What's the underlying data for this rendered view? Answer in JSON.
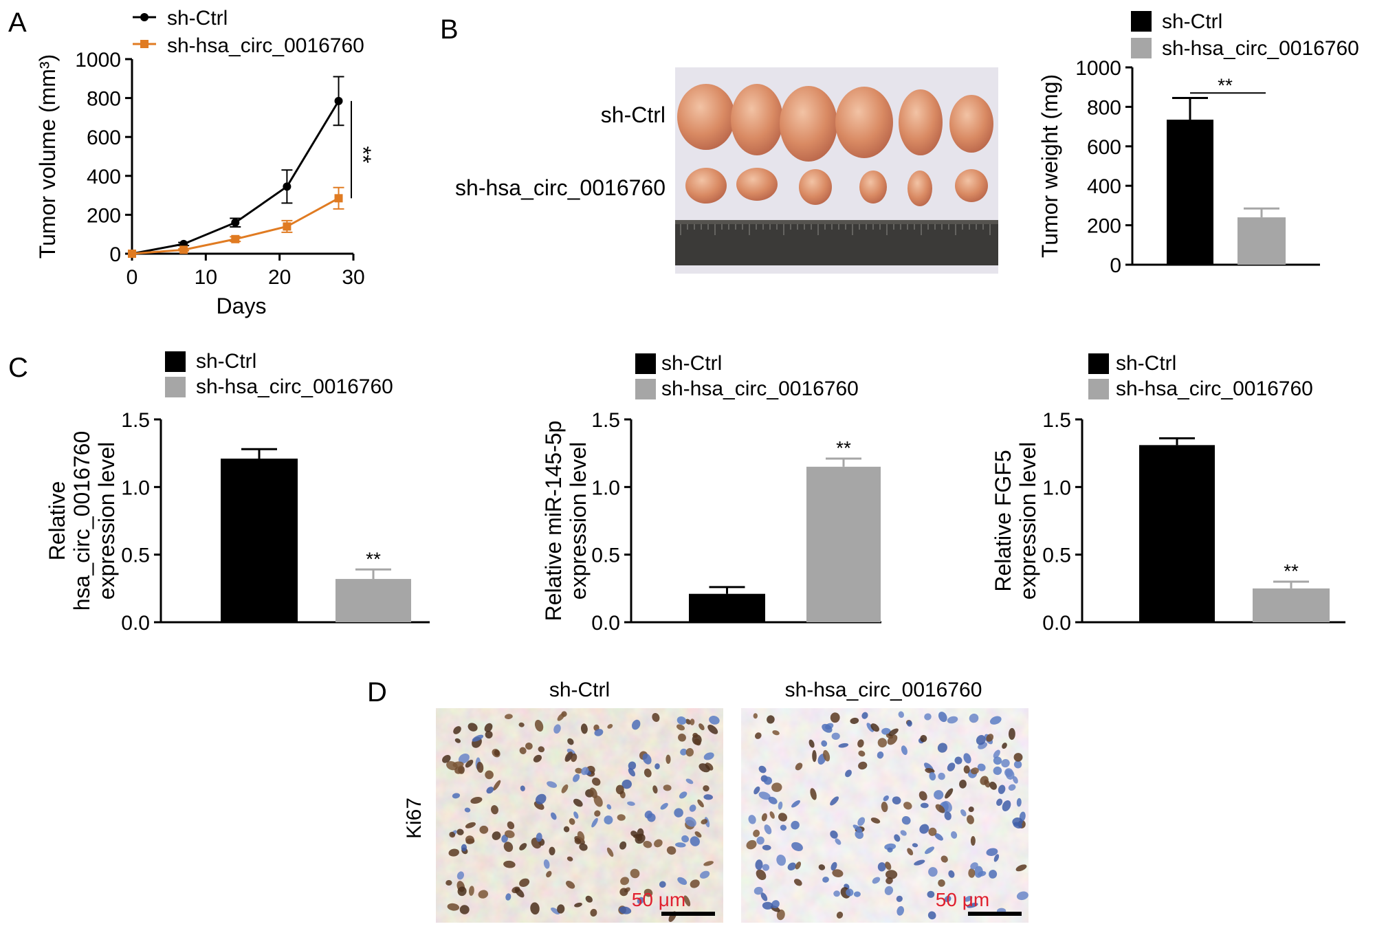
{
  "figure": {
    "panel_labels": [
      "A",
      "B",
      "C",
      "D"
    ],
    "colors": {
      "ctrl": "#000000",
      "sh": "#a6a6a6",
      "sh_line": "#e07b22",
      "scale_text": "#e0202e"
    }
  },
  "panel_a": {
    "legend": [
      "sh-Ctrl",
      "sh-hsa_circ_0016760"
    ],
    "significance": "**"
  },
  "panel_b": {
    "photo_row_labels": [
      "sh-Ctrl",
      "sh-hsa_circ_0016760"
    ],
    "legend": [
      "sh-Ctrl",
      "sh-hsa_circ_0016760"
    ],
    "significance": "**"
  },
  "panel_c": {
    "legend": [
      "sh-Ctrl",
      "sh-hsa_circ_0016760"
    ],
    "significance": [
      "**",
      "**",
      "**"
    ]
  },
  "panel_d": {
    "col_labels": [
      "sh-Ctrl",
      "sh-hsa_circ_0016760"
    ],
    "row_label": "Ki67",
    "scale_bar": [
      "50 μm",
      "50 μm"
    ]
  },
  "chart_data": [
    {
      "id": "A",
      "type": "line",
      "xlabel": "Days",
      "ylabel": "Tumor volume (mm³)",
      "xlim": [
        0,
        30
      ],
      "ylim": [
        0,
        1000
      ],
      "xticks": [
        0,
        10,
        20,
        30
      ],
      "yticks": [
        0,
        200,
        400,
        600,
        800,
        1000
      ],
      "series": [
        {
          "name": "sh-Ctrl",
          "x": [
            0,
            7,
            14,
            21,
            28
          ],
          "y": [
            0,
            50,
            160,
            345,
            785
          ],
          "error": [
            0,
            8,
            22,
            85,
            125
          ]
        },
        {
          "name": "sh-hsa_circ_0016760",
          "x": [
            0,
            7,
            14,
            21,
            28
          ],
          "y": [
            0,
            20,
            75,
            140,
            285
          ],
          "error": [
            0,
            5,
            12,
            30,
            55
          ]
        }
      ]
    },
    {
      "id": "B",
      "type": "bar",
      "ylabel": "Tumor weight (mg)",
      "ylim": [
        0,
        1000
      ],
      "yticks": [
        0,
        200,
        400,
        600,
        800,
        1000
      ],
      "categories": [
        "sh-Ctrl",
        "sh-hsa_circ_0016760"
      ],
      "values": [
        735,
        240
      ],
      "error": [
        110,
        45
      ]
    },
    {
      "id": "C1",
      "type": "bar",
      "ylabel": [
        "Relative",
        "hsa_circ_0016760",
        "expression level"
      ],
      "ylim": [
        0,
        1.5
      ],
      "yticks": [
        "0.0",
        "0.5",
        "1.0",
        "1.5"
      ],
      "categories": [
        "sh-Ctrl",
        "sh-hsa_circ_0016760"
      ],
      "values": [
        1.21,
        0.32
      ],
      "error": [
        0.07,
        0.07
      ]
    },
    {
      "id": "C2",
      "type": "bar",
      "ylabel": [
        "Relative miR-145-5p",
        "expression level"
      ],
      "ylim": [
        0,
        1.5
      ],
      "yticks": [
        "0.0",
        "0.5",
        "1.0",
        "1.5"
      ],
      "categories": [
        "sh-Ctrl",
        "sh-hsa_circ_0016760"
      ],
      "values": [
        0.21,
        1.15
      ],
      "error": [
        0.05,
        0.06
      ]
    },
    {
      "id": "C3",
      "type": "bar",
      "ylabel": [
        "Relative FGF5",
        "expression level"
      ],
      "ylim": [
        0,
        1.5
      ],
      "yticks": [
        "0.0",
        "0.5",
        "1.0",
        "1.5"
      ],
      "categories": [
        "sh-Ctrl",
        "sh-hsa_circ_0016760"
      ],
      "values": [
        1.31,
        0.25
      ],
      "error": [
        0.05,
        0.05
      ]
    }
  ]
}
